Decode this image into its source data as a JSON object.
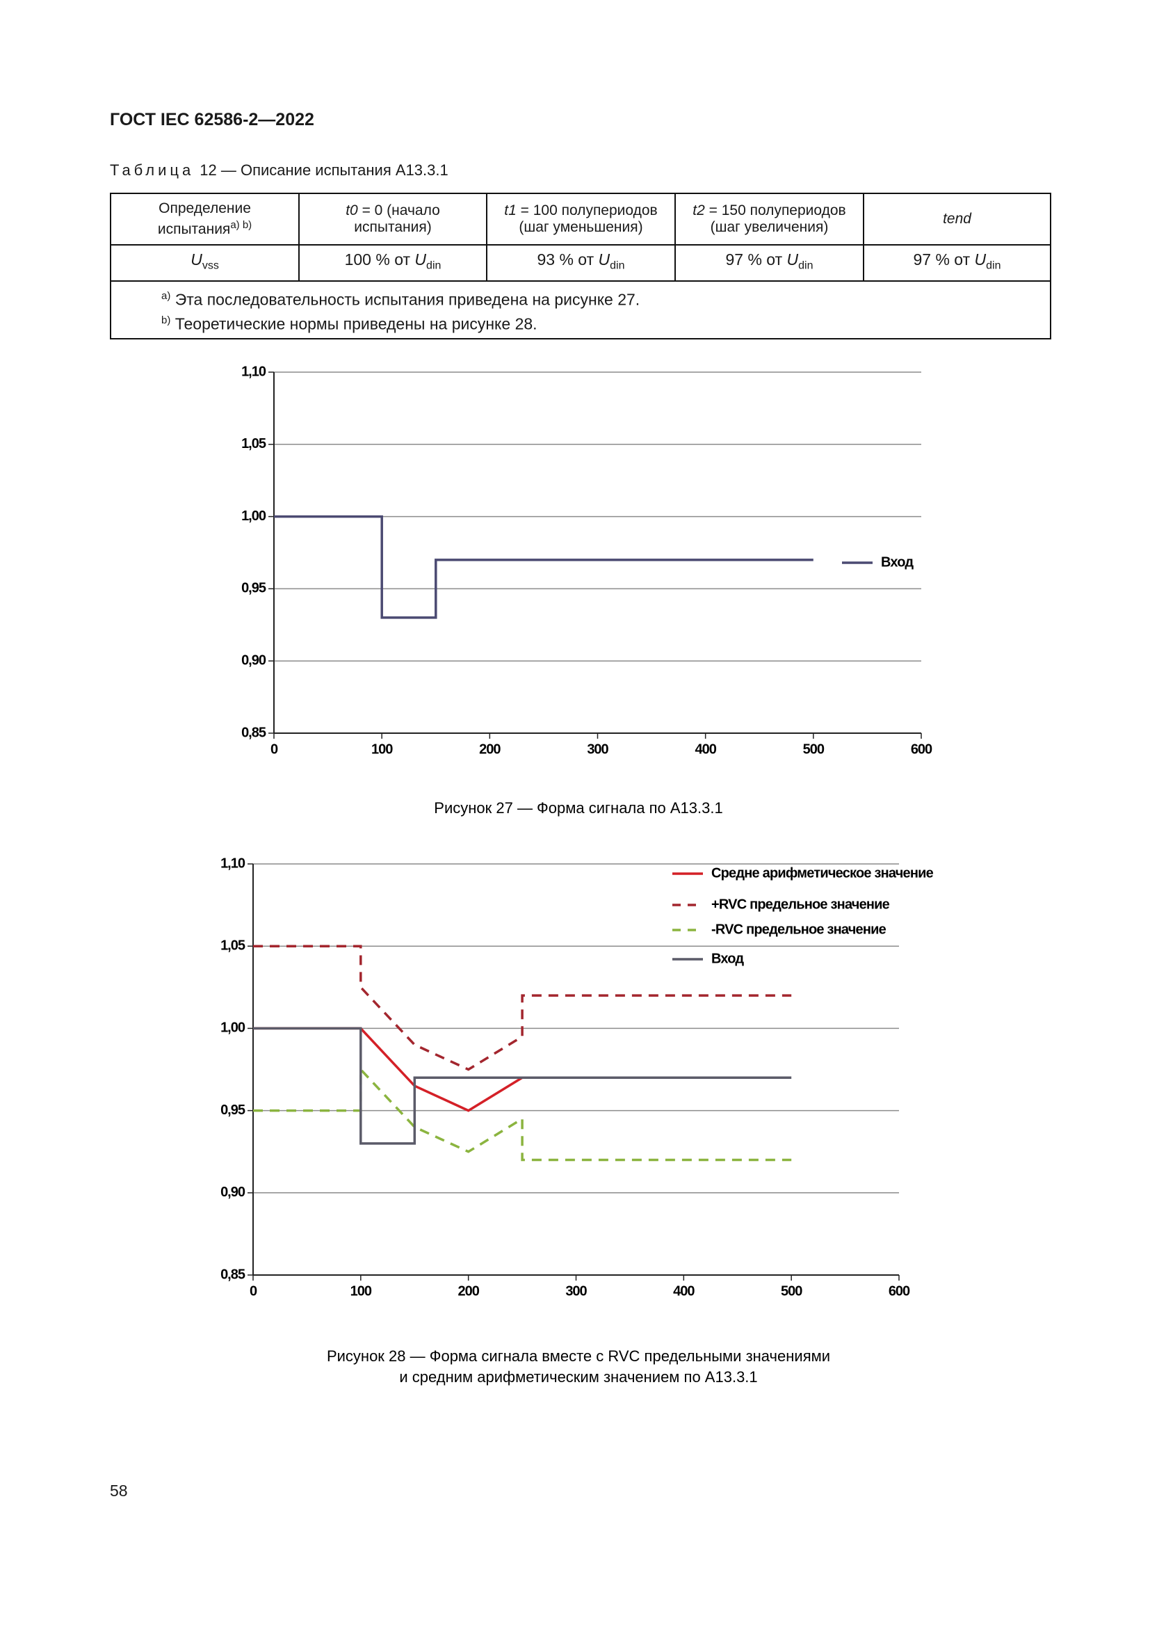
{
  "header": {
    "title": "ГОСТ IEC 62586-2—2022"
  },
  "table": {
    "label": "Таблица",
    "caption": "12 — Описание испытания A13.3.1",
    "header": [
      {
        "text": "Определение испытания",
        "sup": "a) b)"
      },
      {
        "var": "t0",
        "text": "= 0 (начало испытания)"
      },
      {
        "var": "t1",
        "text": "= 100 полупериодов (шаг уменьшения)"
      },
      {
        "var": "t2",
        "text": "= 150 полупериодов (шаг увеличения)"
      },
      {
        "var": "tend"
      }
    ],
    "rows": [
      [
        {
          "var": "U",
          "sub": "vss"
        },
        {
          "text": "100 % от",
          "var": "U",
          "sub": "din"
        },
        {
          "text": "93 % от",
          "var": "U",
          "sub": "din"
        },
        {
          "text": "97 % от",
          "var": "U",
          "sub": "din"
        },
        {
          "text": "97 % от",
          "var": "U",
          "sub": "din"
        }
      ]
    ],
    "footnotes": [
      {
        "mark": "a)",
        "text": "Эта последовательность испытания приведена на рисунке 27."
      },
      {
        "mark": "b)",
        "text": "Теоретические нормы приведены на рисунке 28."
      }
    ]
  },
  "chart_data": [
    {
      "type": "line",
      "caption": [
        "Рисунок 27 — Форма сигнала по A13.3.1"
      ],
      "xlim": [
        0,
        600
      ],
      "xticks": [
        0,
        100,
        200,
        300,
        400,
        500,
        600
      ],
      "ylim": [
        0.85,
        1.1
      ],
      "yticks": [
        {
          "value": 0.85,
          "label": "0,85"
        },
        {
          "value": 0.9,
          "label": "0,90"
        },
        {
          "value": 0.95,
          "label": "0,95"
        },
        {
          "value": 1.0,
          "label": "1,00"
        },
        {
          "value": 1.05,
          "label": "1,05"
        },
        {
          "value": 1.1,
          "label": "1,10"
        }
      ],
      "grid": true,
      "legend": "right",
      "series": [
        {
          "name": "Вход",
          "color": "#4b4a72",
          "dashed": false,
          "x": [
            0,
            100,
            100,
            150,
            150,
            500
          ],
          "values": [
            1.0,
            1.0,
            0.93,
            0.93,
            0.97,
            0.97
          ]
        }
      ]
    },
    {
      "type": "line",
      "caption": [
        "Рисунок 28 — Форма сигнала вместе с RVC предельными значениями",
        "и средним арифметическим значением по A13.3.1"
      ],
      "xlim": [
        0,
        600
      ],
      "xticks": [
        0,
        100,
        200,
        300,
        400,
        500,
        600
      ],
      "ylim": [
        0.85,
        1.1
      ],
      "yticks": [
        {
          "value": 0.85,
          "label": "0,85"
        },
        {
          "value": 0.9,
          "label": "0,90"
        },
        {
          "value": 0.95,
          "label": "0,95"
        },
        {
          "value": 1.0,
          "label": "1,00"
        },
        {
          "value": 1.05,
          "label": "1,05"
        },
        {
          "value": 1.1,
          "label": "1,10"
        }
      ],
      "grid": true,
      "legend": "upper right",
      "series": [
        {
          "name": "Средне арифметическое значение",
          "color": "#d42027",
          "dashed": false,
          "x": [
            0,
            100,
            150,
            200,
            250,
            300
          ],
          "values": [
            1.0,
            1.0,
            0.965,
            0.95,
            0.97,
            0.97
          ]
        },
        {
          "name": "+RVC предельное значение",
          "color": "#a3262e",
          "dashed": true,
          "x": [
            0,
            100,
            100,
            150,
            200,
            250,
            250,
            500
          ],
          "values": [
            1.05,
            1.05,
            1.025,
            0.99,
            0.975,
            0.995,
            1.02,
            1.02
          ]
        },
        {
          "name": "-RVC предельное значение",
          "color": "#8bb43f",
          "dashed": true,
          "x": [
            0,
            100,
            100,
            150,
            200,
            250,
            250,
            500
          ],
          "values": [
            0.95,
            0.95,
            0.975,
            0.94,
            0.925,
            0.945,
            0.92,
            0.92
          ]
        },
        {
          "name": "Вход",
          "color": "#5b5b69",
          "dashed": false,
          "x": [
            0,
            100,
            100,
            150,
            150,
            500
          ],
          "values": [
            1.0,
            1.0,
            0.93,
            0.93,
            0.97,
            0.97
          ]
        }
      ]
    }
  ],
  "page_number": "58"
}
